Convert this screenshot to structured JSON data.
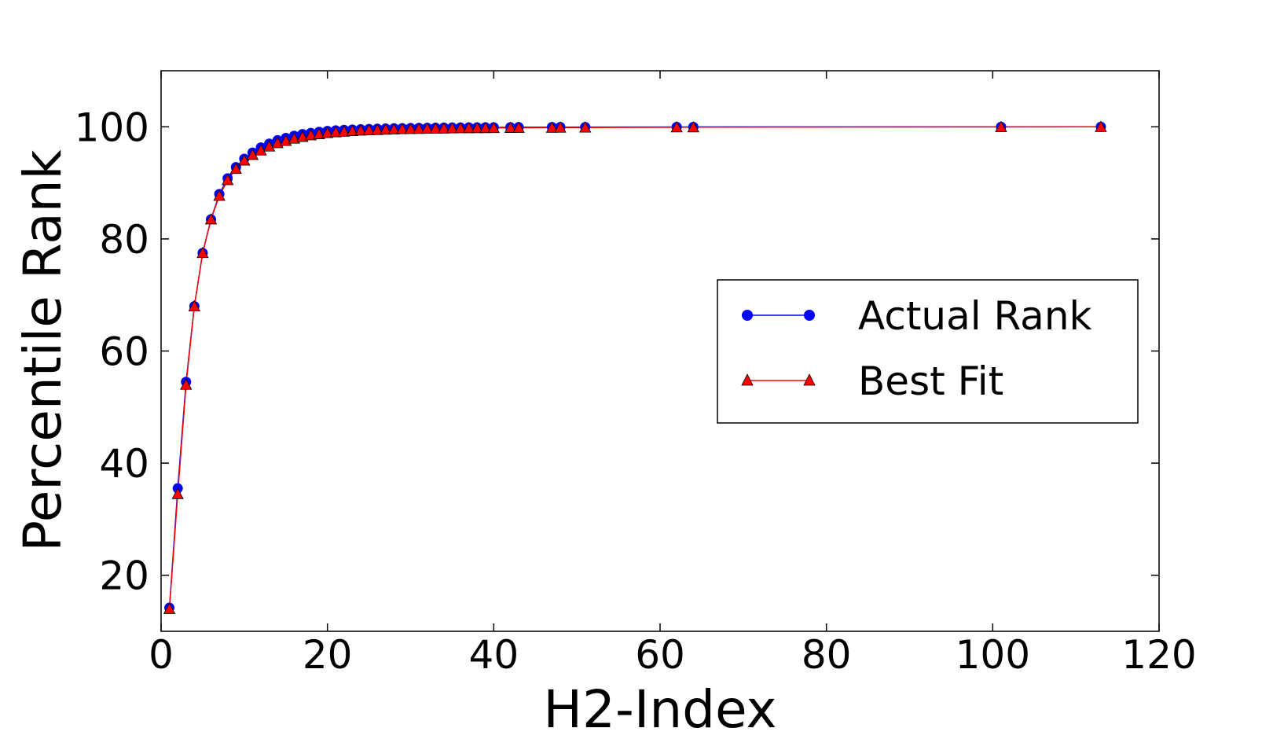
{
  "chart_data": {
    "type": "line",
    "title": "",
    "xlabel": "H2-Index",
    "ylabel": "Percentile Rank",
    "xlim": [
      0,
      120
    ],
    "ylim": [
      10,
      110
    ],
    "xticks": [
      0,
      20,
      40,
      60,
      80,
      100,
      120
    ],
    "yticks": [
      20,
      40,
      60,
      80,
      100
    ],
    "grid": false,
    "legend_position": "center-right",
    "series": [
      {
        "name": "Actual Rank",
        "color": "#0000ff",
        "marker": "circle",
        "x": [
          1,
          2,
          3,
          4,
          5,
          6,
          7,
          8,
          9,
          10,
          11,
          12,
          13,
          14,
          15,
          16,
          17,
          18,
          19,
          20,
          21,
          22,
          23,
          24,
          25,
          26,
          27,
          28,
          29,
          30,
          31,
          32,
          33,
          34,
          35,
          36,
          37,
          38,
          39,
          40,
          42,
          43,
          47,
          48,
          51,
          62,
          64,
          101,
          113
        ],
        "y": [
          14.2,
          35.5,
          54.5,
          68.0,
          77.5,
          83.5,
          88.0,
          90.8,
          92.8,
          94.3,
          95.4,
          96.3,
          97.0,
          97.6,
          98.0,
          98.4,
          98.7,
          98.9,
          99.1,
          99.25,
          99.35,
          99.45,
          99.5,
          99.55,
          99.6,
          99.65,
          99.7,
          99.72,
          99.75,
          99.78,
          99.8,
          99.82,
          99.84,
          99.85,
          99.86,
          99.87,
          99.88,
          99.89,
          99.9,
          99.9,
          99.92,
          99.93,
          99.95,
          99.95,
          99.96,
          99.97,
          99.98,
          99.99,
          100.0
        ]
      },
      {
        "name": "Best Fit",
        "color": "#ff0000",
        "marker": "triangle",
        "x": [
          1,
          2,
          3,
          4,
          5,
          6,
          7,
          8,
          9,
          10,
          11,
          12,
          13,
          14,
          15,
          16,
          17,
          18,
          19,
          20,
          21,
          22,
          23,
          24,
          25,
          26,
          27,
          28,
          29,
          30,
          31,
          32,
          33,
          34,
          35,
          36,
          37,
          38,
          39,
          40,
          42,
          43,
          47,
          48,
          51,
          62,
          64,
          101,
          113
        ],
        "y": [
          14.0,
          34.5,
          54.0,
          68.0,
          77.5,
          83.5,
          87.7,
          90.5,
          92.5,
          94.0,
          95.0,
          95.8,
          96.5,
          97.1,
          97.5,
          97.9,
          98.2,
          98.5,
          98.7,
          98.9,
          99.05,
          99.15,
          99.25,
          99.35,
          99.4,
          99.45,
          99.5,
          99.55,
          99.6,
          99.62,
          99.65,
          99.68,
          99.7,
          99.72,
          99.74,
          99.76,
          99.77,
          99.78,
          99.79,
          99.8,
          99.82,
          99.83,
          99.86,
          99.87,
          99.88,
          99.92,
          99.93,
          99.98,
          100.0
        ]
      }
    ]
  }
}
